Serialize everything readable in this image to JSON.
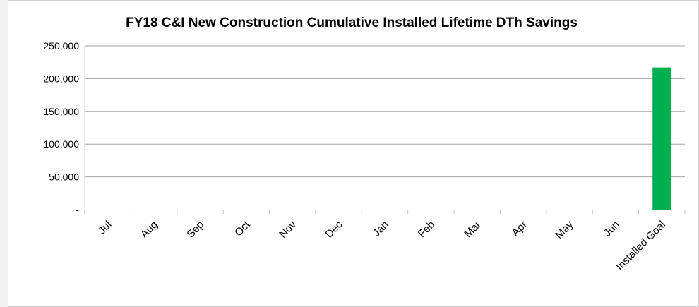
{
  "chart_data": {
    "type": "bar",
    "title": "FY18 C&I New Construction Cumulative Installed Lifetime DTh Savings",
    "categories": [
      "Jul",
      "Aug",
      "Sep",
      "Oct",
      "Nov",
      "Dec",
      "Jan",
      "Feb",
      "Mar",
      "Apr",
      "May",
      "Jun",
      "Installed Goal"
    ],
    "values": [
      null,
      null,
      null,
      null,
      null,
      null,
      null,
      null,
      null,
      null,
      null,
      null,
      217000
    ],
    "color": "#00b050",
    "ylim": [
      0,
      250000
    ],
    "yticks": [
      {
        "value": 0,
        "label": "-"
      },
      {
        "value": 50000,
        "label": "50,000"
      },
      {
        "value": 100000,
        "label": "100,000"
      },
      {
        "value": 150000,
        "label": "150,000"
      },
      {
        "value": 200000,
        "label": "200,000"
      },
      {
        "value": 250000,
        "label": "250,000"
      }
    ],
    "grid": true
  }
}
